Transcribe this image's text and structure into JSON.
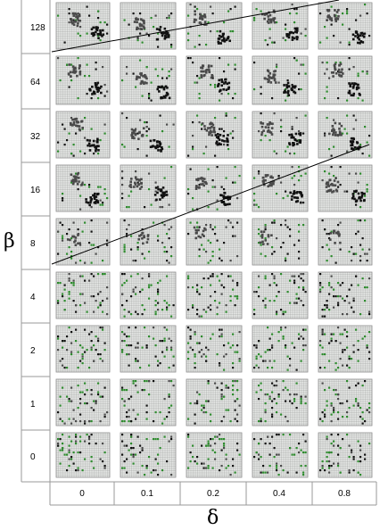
{
  "figure": {
    "y_axis_symbol": "β",
    "x_axis_symbol": "δ",
    "row_labels": [
      "128",
      "64",
      "32",
      "16",
      "8",
      "4",
      "2",
      "1",
      "0"
    ],
    "col_labels": [
      "0",
      "0.1",
      "0.2",
      "0.4",
      "0.8"
    ],
    "colors": {
      "frame": "#9a9a9a",
      "panel_bg": "#e4e6e4",
      "grid_line": "#8c8c8c",
      "agent_black": "#111111",
      "agent_dark_gray": "#4a4a4a",
      "agent_green": "#2e8b2e",
      "boundary_line": "#000000"
    },
    "clustering_by_row": [
      1,
      1,
      1,
      1,
      0.6,
      0,
      0,
      0,
      0
    ]
  }
}
